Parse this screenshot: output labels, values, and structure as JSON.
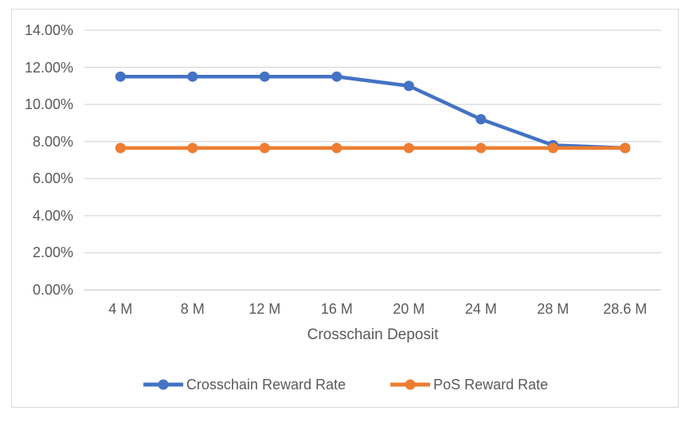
{
  "chart_style": {
    "background": "#ffffff",
    "frame_border_color": "#d9d9d9",
    "gridline_color": "#d9d9d9",
    "axisline_color": "#c9c9c9",
    "text_color": "#595959"
  },
  "chart_data": {
    "type": "line",
    "title": "",
    "xlabel": "Crosschain Deposit",
    "ylabel": "",
    "categories": [
      "4 M",
      "8 M",
      "12 M",
      "16 M",
      "20 M",
      "24 M",
      "28 M",
      "28.6 M"
    ],
    "y_ticks": [
      "14.00%",
      "12.00%",
      "10.00%",
      "8.00%",
      "6.00%",
      "4.00%",
      "2.00%",
      "0.00%"
    ],
    "ylim": [
      0,
      14
    ],
    "grid": true,
    "legend_position": "bottom",
    "series": [
      {
        "name": "Crosschain Reward Rate",
        "color": "#4472C4",
        "values": [
          11.5,
          11.5,
          11.5,
          11.5,
          11.0,
          9.2,
          7.8,
          7.65
        ]
      },
      {
        "name": "PoS Reward Rate",
        "color": "#ED7D31",
        "values": [
          7.65,
          7.65,
          7.65,
          7.65,
          7.65,
          7.65,
          7.65,
          7.65
        ]
      }
    ]
  }
}
